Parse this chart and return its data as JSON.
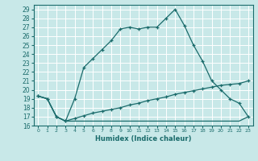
{
  "title": "",
  "xlabel": "Humidex (Indice chaleur)",
  "ylabel": "",
  "bg_color": "#c8e8e8",
  "grid_color": "#ffffff",
  "line_color": "#1a6b6b",
  "xlim": [
    -0.5,
    23.5
  ],
  "ylim": [
    16,
    29.5
  ],
  "xticks": [
    0,
    1,
    2,
    3,
    4,
    5,
    6,
    7,
    8,
    9,
    10,
    11,
    12,
    13,
    14,
    15,
    16,
    17,
    18,
    19,
    20,
    21,
    22,
    23
  ],
  "yticks": [
    16,
    17,
    18,
    19,
    20,
    21,
    22,
    23,
    24,
    25,
    26,
    27,
    28,
    29
  ],
  "line1_x": [
    0,
    1,
    2,
    3,
    4,
    5,
    6,
    7,
    8,
    9,
    10,
    11,
    12,
    13,
    14,
    15,
    16,
    17,
    18,
    19,
    20,
    21,
    22,
    23
  ],
  "line1_y": [
    19.3,
    19.0,
    17.0,
    16.5,
    19.0,
    22.5,
    23.5,
    24.5,
    25.5,
    26.8,
    27.0,
    26.8,
    27.0,
    27.0,
    28.0,
    29.0,
    27.2,
    25.0,
    23.2,
    21.0,
    20.0,
    19.0,
    18.5,
    17.0
  ],
  "line2_x": [
    0,
    1,
    2,
    3,
    4,
    5,
    6,
    7,
    8,
    9,
    10,
    11,
    12,
    13,
    14,
    15,
    16,
    17,
    18,
    19,
    20,
    21,
    22,
    23
  ],
  "line2_y": [
    19.3,
    19.0,
    17.0,
    16.5,
    16.8,
    17.1,
    17.4,
    17.6,
    17.8,
    18.0,
    18.3,
    18.5,
    18.8,
    19.0,
    19.2,
    19.5,
    19.7,
    19.9,
    20.1,
    20.3,
    20.5,
    20.6,
    20.7,
    21.0
  ],
  "line3_x": [
    0,
    1,
    2,
    3,
    4,
    5,
    6,
    7,
    8,
    9,
    10,
    11,
    12,
    13,
    14,
    15,
    16,
    17,
    18,
    19,
    20,
    21,
    22,
    23
  ],
  "line3_y": [
    19.3,
    19.0,
    17.0,
    16.5,
    16.5,
    16.5,
    16.5,
    16.5,
    16.5,
    16.5,
    16.5,
    16.5,
    16.5,
    16.5,
    16.5,
    16.5,
    16.5,
    16.5,
    16.5,
    16.5,
    16.5,
    16.5,
    16.5,
    17.0
  ]
}
